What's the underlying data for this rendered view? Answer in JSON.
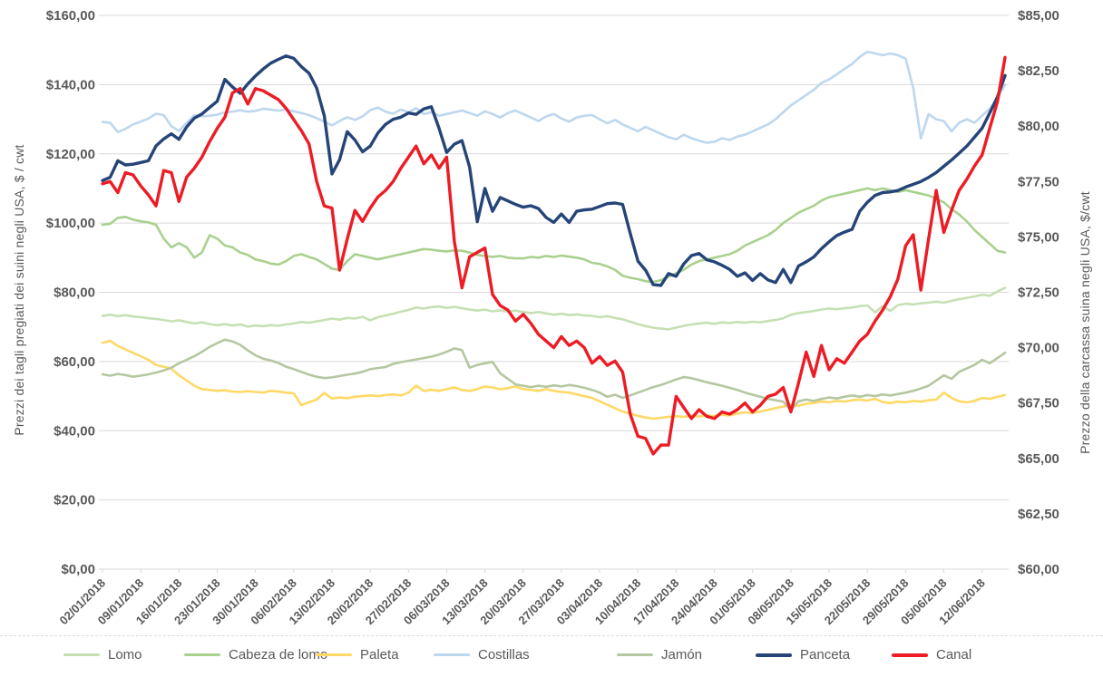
{
  "chart_data": {
    "type": "line",
    "title": "",
    "grid": true,
    "legend_position": "bottom",
    "x_tick_labels": [
      "02/01/2018",
      "09/01/2018",
      "16/01/2018",
      "23/01/2018",
      "30/01/2018",
      "06/02/2018",
      "13/02/2018",
      "20/02/2018",
      "27/02/2018",
      "06/03/2018",
      "13/03/2018",
      "20/03/2018",
      "27/03/2018",
      "03/04/2018",
      "10/04/2018",
      "17/04/2018",
      "24/04/2018",
      "01/05/2018",
      "08/05/2018",
      "15/05/2018",
      "22/05/2018",
      "29/05/2018",
      "05/06/2018",
      "12/06/2018"
    ],
    "x_tick_every_n_points": 5,
    "points_per_series": 119,
    "left_axis": {
      "label": "Prezzi dei tagli pregiati dei suini negli USA, $ / cwt",
      "min": 0,
      "max": 160,
      "tick_labels": [
        "$160,00",
        "$140,00",
        "$120,00",
        "$100,00",
        "$80,00",
        "$60,00",
        "$40,00",
        "$20,00",
        "$0,00"
      ]
    },
    "right_axis": {
      "label": "Prezzo della carcassa suina negli USA, $/cwt",
      "min": 60,
      "max": 85,
      "tick_labels": [
        "$85,00",
        "$82,50",
        "$80,00",
        "$77,50",
        "$75,00",
        "$72,50",
        "$70,00",
        "$67,50",
        "$65,00",
        "$62,50",
        "$60,00"
      ]
    },
    "colors": {
      "grid": "#d9d9d9",
      "axis_text": "#595959",
      "lomo": "#c6e0b4",
      "cabeza_de_lomo": "#a9d18e",
      "paleta": "#ffd966",
      "costillas": "#bdd7ee",
      "jamon": "#b5c7a0",
      "panceta": "#254478",
      "canal": "#ed1c24"
    },
    "series": [
      {
        "name": "Lomo",
        "color_key": "lomo",
        "axis": "left",
        "width": 2.6,
        "values": [
          73.2,
          73.5,
          73.1,
          73.4,
          73.0,
          72.8,
          72.5,
          72.3,
          72.0,
          71.6,
          71.9,
          71.4,
          71.0,
          71.3,
          70.8,
          70.5,
          70.8,
          70.4,
          70.7,
          70.1,
          70.4,
          70.2,
          70.5,
          70.3,
          70.7,
          71.0,
          71.4,
          71.2,
          71.6,
          72.0,
          72.4,
          72.1,
          72.6,
          72.4,
          72.9,
          71.9,
          72.8,
          73.3,
          73.8,
          74.4,
          74.9,
          75.6,
          75.3,
          75.7,
          75.9,
          75.5,
          75.8,
          75.4,
          75.0,
          74.7,
          75.0,
          74.5,
          74.8,
          74.4,
          74.7,
          74.3,
          74.0,
          74.3,
          73.9,
          73.5,
          73.8,
          73.4,
          73.6,
          73.3,
          73.2,
          72.8,
          73.1,
          72.6,
          72.2,
          71.5,
          70.8,
          70.2,
          69.8,
          69.5,
          69.3,
          69.8,
          70.3,
          70.7,
          71.0,
          71.2,
          70.9,
          71.3,
          71.1,
          71.4,
          71.2,
          71.5,
          71.3,
          71.7,
          72.0,
          72.5,
          73.5,
          74.0,
          74.3,
          74.6,
          75.0,
          75.3,
          75.1,
          75.4,
          75.6,
          76.0,
          76.2,
          74.2,
          76.0,
          74.6,
          76.3,
          76.7,
          76.5,
          76.8,
          77.0,
          77.3,
          77.0,
          77.5,
          78.0,
          78.4,
          78.8,
          79.3,
          79.0,
          80.2,
          81.3
        ]
      },
      {
        "name": "Cabeza de lomo",
        "color_key": "cabeza_de_lomo",
        "axis": "left",
        "width": 2.6,
        "values": [
          99.5,
          99.8,
          101.5,
          101.8,
          101.0,
          100.5,
          100.2,
          99.5,
          95.5,
          93.0,
          94.2,
          93.0,
          90.0,
          91.5,
          96.5,
          95.5,
          93.5,
          93.0,
          91.5,
          90.8,
          89.5,
          89.0,
          88.3,
          88.0,
          89.0,
          90.5,
          91.0,
          90.2,
          89.5,
          88.2,
          86.8,
          86.5,
          89.0,
          91.0,
          90.5,
          90.0,
          89.5,
          90.0,
          90.5,
          91.0,
          91.5,
          92.0,
          92.5,
          92.3,
          92.0,
          91.8,
          92.1,
          92.0,
          91.5,
          90.8,
          90.5,
          90.2,
          90.5,
          90.0,
          89.8,
          89.8,
          90.2,
          90.0,
          90.5,
          90.2,
          90.6,
          90.3,
          90.0,
          89.5,
          88.5,
          88.2,
          87.5,
          86.5,
          84.8,
          84.2,
          83.8,
          83.2,
          83.0,
          83.5,
          84.5,
          85.5,
          86.5,
          88.0,
          89.0,
          89.5,
          90.0,
          90.5,
          91.0,
          92.0,
          93.5,
          94.5,
          95.5,
          96.5,
          98.0,
          100.0,
          101.5,
          103.0,
          104.0,
          105.0,
          106.5,
          107.5,
          108.0,
          108.5,
          109.0,
          109.5,
          110.0,
          109.5,
          110.0,
          109.5,
          109.0,
          109.5,
          109.0,
          108.5,
          108.0,
          107.0,
          106.0,
          104.0,
          102.5,
          100.5,
          98.0,
          96.0,
          94.0,
          92.0,
          91.5
        ]
      },
      {
        "name": "Paleta",
        "color_key": "paleta",
        "axis": "left",
        "width": 2.6,
        "values": [
          65.4,
          66.0,
          64.5,
          63.5,
          62.5,
          61.5,
          60.5,
          59.0,
          58.5,
          57.9,
          56.0,
          54.5,
          53.0,
          52.0,
          51.8,
          51.5,
          51.7,
          51.3,
          51.2,
          51.4,
          51.2,
          51.0,
          51.5,
          51.3,
          51.0,
          50.8,
          47.4,
          48.2,
          49.0,
          50.9,
          49.3,
          49.6,
          49.4,
          49.8,
          50.0,
          50.2,
          50.0,
          50.3,
          50.5,
          50.2,
          51.0,
          53.0,
          51.5,
          51.8,
          51.5,
          52.0,
          52.5,
          51.8,
          51.5,
          52.0,
          52.8,
          52.5,
          52.0,
          52.3,
          52.8,
          52.0,
          51.8,
          51.5,
          52.0,
          51.5,
          51.2,
          51.0,
          50.5,
          50.0,
          49.5,
          48.5,
          47.5,
          46.5,
          45.5,
          45.0,
          44.3,
          43.8,
          43.5,
          43.7,
          44.0,
          44.2,
          44.0,
          44.3,
          44.1,
          44.4,
          44.2,
          44.6,
          44.4,
          45.0,
          45.3,
          45.1,
          45.6,
          46.0,
          46.5,
          47.0,
          47.5,
          47.2,
          47.8,
          48.0,
          48.5,
          48.2,
          48.6,
          48.4,
          48.8,
          49.0,
          48.7,
          49.2,
          48.3,
          48.0,
          48.4,
          48.2,
          48.6,
          48.4,
          48.8,
          49.0,
          51.0,
          49.5,
          48.5,
          48.2,
          48.6,
          49.5,
          49.2,
          49.8,
          50.3
        ]
      },
      {
        "name": "Costillas",
        "color_key": "costillas",
        "axis": "left",
        "width": 2.6,
        "values": [
          129.2,
          129.0,
          126.3,
          127.2,
          128.5,
          129.3,
          130.2,
          131.6,
          131.2,
          128.0,
          126.6,
          129.0,
          131.2,
          130.8,
          131.0,
          131.3,
          132.0,
          132.2,
          132.6,
          132.2,
          132.4,
          133.0,
          132.8,
          132.5,
          132.8,
          132.3,
          131.8,
          131.2,
          130.3,
          129.3,
          128.2,
          129.5,
          130.6,
          129.8,
          130.8,
          132.6,
          133.4,
          132.2,
          131.6,
          132.8,
          132.0,
          133.2,
          131.5,
          132.0,
          131.0,
          131.5,
          132.0,
          132.5,
          131.8,
          131.0,
          132.3,
          131.5,
          130.5,
          131.8,
          132.5,
          131.5,
          130.5,
          129.5,
          130.8,
          131.5,
          130.2,
          129.3,
          130.5,
          131.0,
          131.2,
          130.0,
          128.8,
          129.8,
          128.5,
          127.5,
          126.5,
          127.8,
          126.8,
          125.8,
          124.8,
          124.2,
          125.5,
          124.5,
          123.8,
          123.2,
          123.5,
          124.5,
          124.0,
          125.0,
          125.5,
          126.5,
          127.5,
          128.5,
          130.0,
          132.0,
          134.0,
          135.5,
          137.0,
          138.5,
          140.5,
          141.5,
          143.0,
          144.5,
          146.0,
          148.0,
          149.5,
          149.0,
          148.5,
          149.0,
          148.5,
          147.5,
          139.0,
          124.5,
          131.5,
          130.0,
          129.5,
          126.5,
          129.0,
          130.0,
          129.0,
          131.0,
          133.0,
          136.0,
          140.0
        ]
      },
      {
        "name": "Jamón",
        "color_key": "jamon",
        "axis": "left",
        "width": 2.6,
        "values": [
          56.3,
          55.9,
          56.4,
          56.1,
          55.6,
          55.9,
          56.3,
          56.8,
          57.4,
          58.2,
          59.5,
          60.5,
          61.5,
          62.8,
          64.2,
          65.3,
          66.3,
          65.8,
          64.8,
          63.2,
          61.8,
          60.8,
          60.3,
          59.6,
          58.5,
          57.8,
          57.0,
          56.2,
          55.6,
          55.2,
          55.4,
          55.8,
          56.2,
          56.5,
          57.0,
          57.8,
          58.1,
          58.4,
          59.3,
          59.8,
          60.2,
          60.6,
          61.0,
          61.4,
          62.0,
          62.8,
          63.8,
          63.3,
          58.2,
          59.0,
          59.5,
          59.9,
          56.6,
          55.0,
          53.4,
          53.0,
          52.6,
          53.0,
          52.7,
          53.1,
          52.8,
          53.2,
          52.9,
          52.4,
          51.8,
          51.0,
          49.8,
          50.4,
          49.5,
          50.2,
          51.0,
          51.8,
          52.6,
          53.2,
          54.0,
          54.8,
          55.5,
          55.2,
          54.6,
          54.0,
          53.5,
          53.0,
          52.4,
          51.8,
          51.0,
          50.4,
          49.8,
          49.2,
          48.8,
          48.4,
          45.9,
          48.5,
          49.0,
          48.6,
          49.2,
          49.6,
          49.3,
          49.8,
          50.2,
          49.8,
          50.3,
          50.0,
          50.5,
          50.2,
          50.6,
          51.0,
          51.5,
          52.2,
          53.0,
          54.5,
          56.0,
          55.0,
          57.0,
          58.0,
          59.0,
          60.5,
          59.5,
          61.0,
          62.5
        ]
      },
      {
        "name": "Panceta",
        "color_key": "panceta",
        "axis": "left",
        "width": 3.4,
        "values": [
          112.3,
          113.2,
          118.0,
          116.8,
          117.0,
          117.5,
          118.0,
          122.3,
          124.3,
          125.8,
          124.2,
          127.8,
          130.3,
          131.5,
          133.4,
          135.2,
          141.5,
          139.3,
          137.5,
          140.2,
          142.5,
          144.5,
          146.2,
          147.3,
          148.3,
          147.6,
          145.2,
          143.3,
          139.0,
          131.0,
          114.2,
          118.3,
          126.4,
          124.0,
          120.6,
          122.2,
          126.0,
          128.5,
          130.0,
          130.6,
          131.8,
          131.4,
          133.0,
          133.6,
          127.4,
          120.4,
          122.8,
          123.8,
          116.2,
          100.4,
          110.0,
          103.4,
          107.4,
          106.4,
          105.4,
          104.6,
          105.0,
          104.2,
          101.6,
          100.2,
          102.6,
          100.2,
          103.4,
          103.8,
          104.0,
          104.8,
          105.6,
          105.8,
          105.4,
          97.0,
          89.0,
          86.4,
          82.2,
          82.0,
          85.4,
          84.6,
          88.2,
          90.6,
          91.2,
          89.4,
          88.8,
          87.8,
          86.6,
          84.6,
          85.6,
          83.4,
          85.4,
          83.6,
          82.8,
          86.6,
          82.8,
          87.6,
          88.8,
          90.2,
          92.6,
          94.6,
          96.4,
          97.4,
          98.2,
          103.4,
          106.0,
          108.0,
          108.8,
          109.0,
          109.4,
          110.4,
          111.2,
          112.0,
          113.2,
          114.6,
          116.4,
          118.2,
          120.2,
          122.2,
          124.8,
          127.4,
          131.8,
          136.4,
          142.6
        ]
      },
      {
        "name": "Canal",
        "color_key": "canal",
        "axis": "right",
        "width": 3.4,
        "values": [
          77.4,
          77.5,
          77.0,
          77.9,
          77.8,
          77.3,
          76.9,
          76.4,
          78.0,
          77.9,
          76.6,
          77.7,
          78.1,
          78.6,
          79.3,
          79.9,
          80.4,
          81.5,
          81.7,
          81.0,
          81.7,
          81.6,
          81.4,
          81.2,
          80.8,
          80.3,
          79.8,
          79.2,
          77.5,
          76.4,
          76.3,
          73.5,
          74.9,
          76.2,
          75.7,
          76.3,
          76.8,
          77.1,
          77.5,
          78.1,
          78.6,
          79.1,
          78.3,
          78.7,
          78.1,
          78.6,
          74.8,
          72.7,
          74.1,
          74.3,
          74.5,
          72.4,
          71.9,
          71.7,
          71.2,
          71.5,
          71.1,
          70.6,
          70.3,
          70.0,
          70.5,
          70.1,
          70.3,
          70.0,
          69.3,
          69.6,
          69.2,
          69.4,
          68.9,
          67.0,
          66.0,
          65.9,
          65.2,
          65.6,
          65.6,
          67.8,
          67.3,
          66.8,
          67.2,
          66.9,
          66.8,
          67.1,
          67.0,
          67.2,
          67.5,
          67.1,
          67.4,
          67.8,
          67.9,
          68.2,
          67.1,
          68.4,
          69.8,
          68.7,
          70.1,
          69.0,
          69.5,
          69.3,
          69.8,
          70.3,
          70.6,
          71.2,
          71.7,
          72.3,
          73.1,
          74.6,
          75.1,
          72.6,
          74.9,
          77.1,
          75.2,
          76.2,
          77.1,
          77.6,
          78.2,
          78.7,
          79.9,
          81.1,
          83.1
        ]
      }
    ]
  }
}
